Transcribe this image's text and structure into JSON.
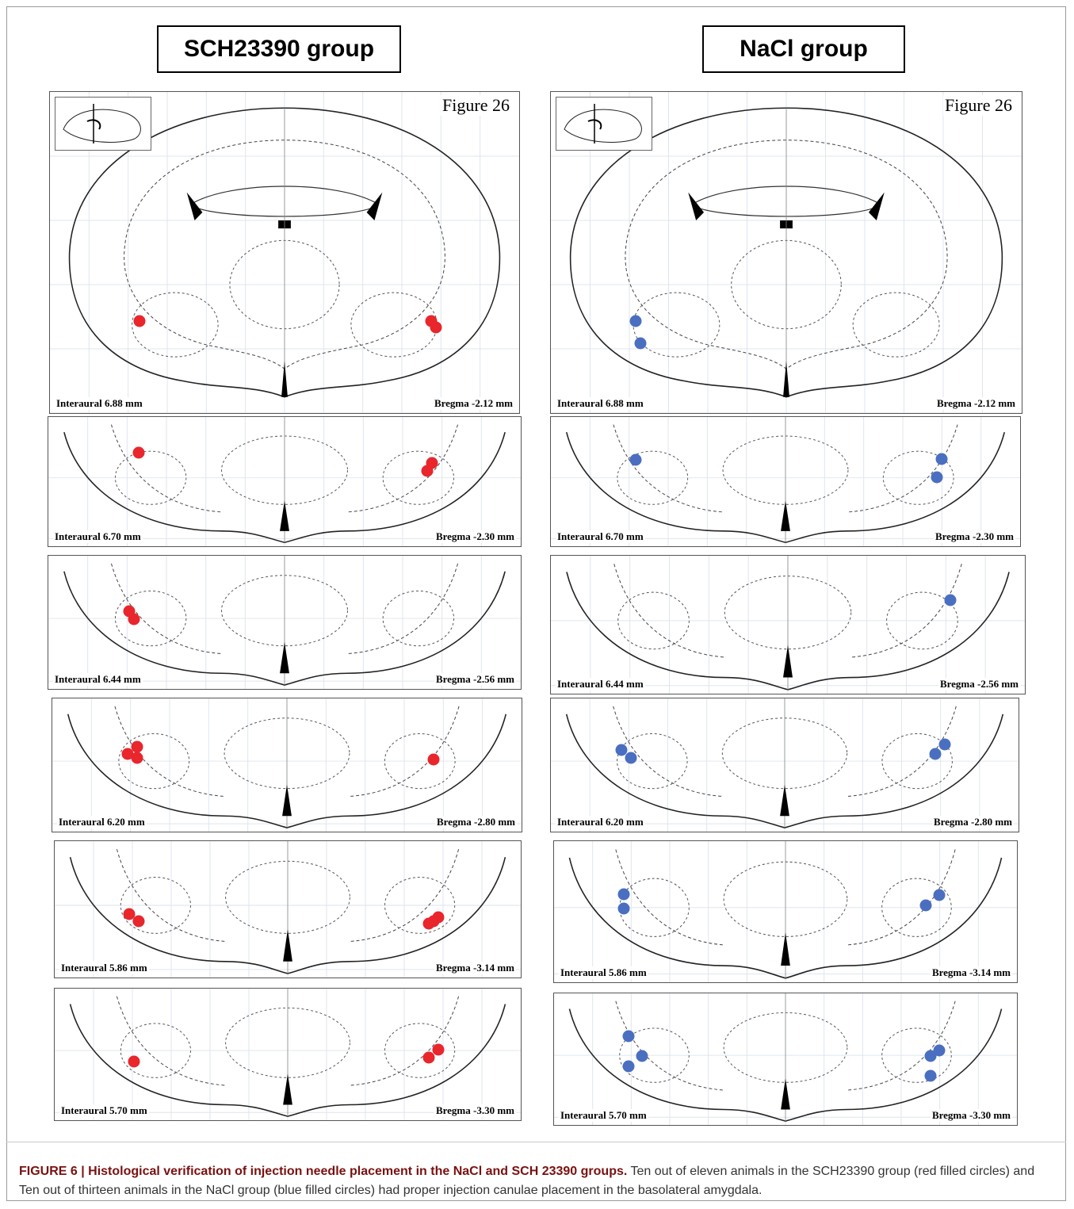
{
  "groups": {
    "left_title": "SCH23390 group",
    "right_title": "NaCl group"
  },
  "figure_label": "Figure 26",
  "colors": {
    "sch": "#e8262c",
    "nacl": "#4a6fc1"
  },
  "sections": [
    {
      "interaural": "Interaural 6.88 mm",
      "bregma": "Bregma -2.12  mm"
    },
    {
      "interaural": "Interaural 6.70 mm",
      "bregma": "Bregma -2.30 mm"
    },
    {
      "interaural": "Interaural 6.44 mm",
      "bregma": "Bregma -2.56 mm"
    },
    {
      "interaural": "Interaural 6.20 mm",
      "bregma": "Bregma -2.80 mm"
    },
    {
      "interaural": "Interaural 5.86 mm",
      "bregma": "Bregma -3.14 mm"
    },
    {
      "interaural": "Interaural 5.70 mm",
      "bregma": "Bregma -3.30 mm"
    }
  ],
  "caption": {
    "lead": "FIGURE 6 | Histological verification of injection needle placement in the NaCl and SCH 23390 groups.",
    "body": "Ten out of eleven animals in the SCH23390 group (red filled circles) and Ten out of thirteen animals in the NaCl group (blue filled circles) had proper injection canulae placement in the basolateral amygdala."
  },
  "injection_sites": {
    "sch": [
      [
        [
          0.19,
          0.71
        ],
        [
          0.81,
          0.71
        ],
        [
          0.82,
          0.73
        ]
      ],
      [
        [
          0.19,
          0.27
        ],
        [
          0.81,
          0.35
        ],
        [
          0.8,
          0.41
        ]
      ],
      [
        [
          0.17,
          0.41
        ],
        [
          0.18,
          0.47
        ]
      ],
      [
        [
          0.18,
          0.36
        ],
        [
          0.16,
          0.41
        ],
        [
          0.18,
          0.44
        ],
        [
          0.81,
          0.45
        ]
      ],
      [
        [
          0.16,
          0.53
        ],
        [
          0.18,
          0.58
        ],
        [
          0.82,
          0.55
        ],
        [
          0.81,
          0.58
        ],
        [
          0.8,
          0.6
        ]
      ],
      [
        [
          0.17,
          0.55
        ],
        [
          0.82,
          0.46
        ],
        [
          0.8,
          0.52
        ]
      ]
    ],
    "nacl": [
      [
        [
          0.18,
          0.71
        ],
        [
          0.19,
          0.78
        ]
      ],
      [
        [
          0.18,
          0.33
        ],
        [
          0.83,
          0.32
        ],
        [
          0.82,
          0.46
        ]
      ],
      [
        [
          0.84,
          0.32
        ]
      ],
      [
        [
          0.15,
          0.38
        ],
        [
          0.17,
          0.44
        ],
        [
          0.84,
          0.34
        ],
        [
          0.82,
          0.41
        ]
      ],
      [
        [
          0.15,
          0.37
        ],
        [
          0.15,
          0.47
        ],
        [
          0.83,
          0.38
        ],
        [
          0.8,
          0.45
        ]
      ],
      [
        [
          0.16,
          0.32
        ],
        [
          0.19,
          0.47
        ],
        [
          0.16,
          0.55
        ],
        [
          0.83,
          0.43
        ],
        [
          0.81,
          0.47
        ],
        [
          0.81,
          0.62
        ]
      ]
    ]
  }
}
